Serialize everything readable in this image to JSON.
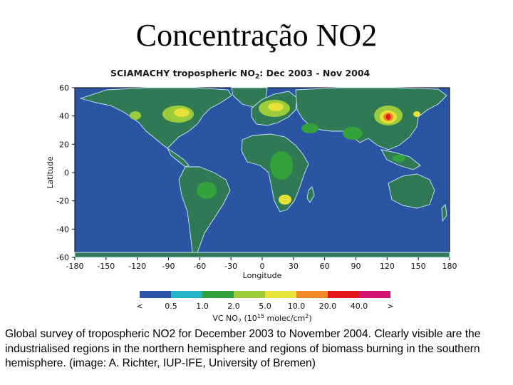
{
  "slide": {
    "title": "Concentração NO2",
    "caption": "Global survey of tropospheric NO2 for December 2003 to November 2004. Clearly visible are the industrialised regions in the northern hemisphere and regions of biomass burning in the southern hemisphere. (image: A. Richter, IUP-IFE, University of Bremen)"
  },
  "map": {
    "title_prefix": "SCIAMACHY tropospheric NO",
    "title_sub": "2",
    "title_suffix": ":  Dec 2003 - Nov 2004",
    "ocean_color": "#2b55a3",
    "xlabel": "Longitude",
    "ylabel": "Latitude",
    "lon_ticks": [
      "-180",
      "-150",
      "-120",
      "-90",
      "-60",
      "-30",
      "0",
      "30",
      "60",
      "90",
      "120",
      "150",
      "180"
    ],
    "lat_ticks": [
      "60",
      "40",
      "20",
      "0",
      "-20",
      "-40",
      "-60"
    ]
  },
  "colorbar": {
    "colors": [
      "#2c57a8",
      "#22b4c8",
      "#33a13c",
      "#9ccb3b",
      "#e6e23a",
      "#ef8a26",
      "#e4181b",
      "#d31471"
    ],
    "labels": [
      "<",
      "0.5",
      "1.0",
      "2.0",
      "5.0",
      "10.0",
      "20.0",
      "40.0",
      ">"
    ],
    "unit_label_prefix": "VC NO",
    "unit_label_sub": "2",
    "unit_label_mid": "  (10",
    "unit_label_sup": "15",
    "unit_label_suffix": " molec/cm",
    "unit_label_sup2": "2",
    "unit_label_end": ")"
  }
}
